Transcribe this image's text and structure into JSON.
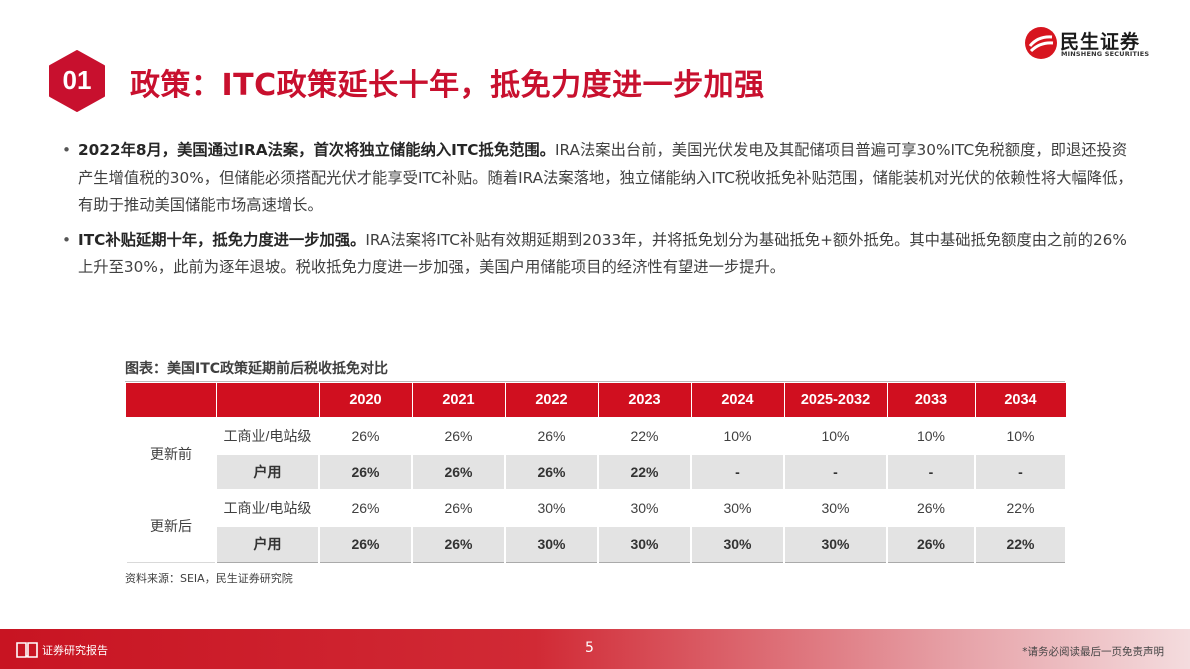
{
  "brand": {
    "name_cn": "民生证券",
    "name_en": "MINSHENG SECURITIES",
    "accent_color": "#c8102e"
  },
  "heading": {
    "number": "01",
    "title": "政策：ITC政策延长十年，抵免力度进一步加强"
  },
  "bullets": [
    {
      "bold": "2022年8月，美国通过IRA法案，首次将独立储能纳入ITC抵免范围。",
      "text": "IRA法案出台前，美国光伏发电及其配储项目普遍可享30%ITC免税额度，即退还投资产生增值税的30%，但储能必须搭配光伏才能享受ITC补贴。随着IRA法案落地，独立储能纳入ITC税收抵免补贴范围，储能装机对光伏的依赖性将大幅降低，有助于推动美国储能市场高速增长。"
    },
    {
      "bold": "ITC补贴延期十年，抵免力度进一步加强。",
      "text": "IRA法案将ITC补贴有效期延期到2033年，并将抵免划分为基础抵免+额外抵免。其中基础抵免额度由之前的26%上升至30%，此前为逐年退坡。税收抵免力度进一步加强，美国户用储能项目的经济性有望进一步提升。"
    }
  ],
  "table": {
    "title": "图表：美国ITC政策延期前后税收抵免对比",
    "years": [
      "2020",
      "2021",
      "2022",
      "2023",
      "2024",
      "2025-2032",
      "2033",
      "2034"
    ],
    "groups": [
      {
        "label": "更新前",
        "rows": [
          {
            "type": "工商业/电站级",
            "values": [
              "26%",
              "26%",
              "26%",
              "22%",
              "10%",
              "10%",
              "10%",
              "10%"
            ]
          },
          {
            "type": "户用",
            "values": [
              "26%",
              "26%",
              "26%",
              "22%",
              "-",
              "-",
              "-",
              "-"
            ]
          }
        ]
      },
      {
        "label": "更新后",
        "rows": [
          {
            "type": "工商业/电站级",
            "values": [
              "26%",
              "26%",
              "30%",
              "30%",
              "30%",
              "30%",
              "26%",
              "22%"
            ]
          },
          {
            "type": "户用",
            "values": [
              "26%",
              "26%",
              "30%",
              "30%",
              "30%",
              "30%",
              "26%",
              "22%"
            ]
          }
        ]
      }
    ],
    "source": "资料来源：SEIA，民生证券研究院"
  },
  "footer": {
    "left": "证券研究报告",
    "page": "5",
    "right": "*请务必阅读最后一页免责声明"
  }
}
